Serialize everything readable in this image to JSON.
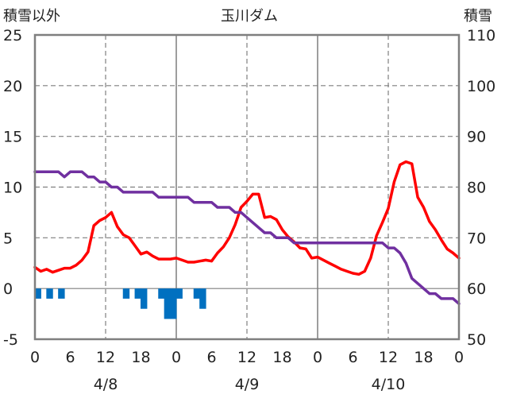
{
  "chart_data": {
    "type": "line",
    "title": "玉川ダム",
    "y_left_label": "積雪以外",
    "y_right_label": "積雪",
    "y_left_ticks": [
      "25",
      "20",
      "15",
      "10",
      "5",
      "0",
      "-5"
    ],
    "y_right_ticks": [
      "110",
      "100",
      "90",
      "80",
      "70",
      "60",
      "50"
    ],
    "y_left_range": [
      -5,
      25
    ],
    "y_right_range": [
      50,
      110
    ],
    "x_range_hours": [
      0,
      72
    ],
    "x_tick_hours": [
      0,
      6,
      12,
      18,
      24,
      30,
      36,
      42,
      48,
      54,
      60,
      66,
      72
    ],
    "x_tick_labels": [
      "0",
      "6",
      "12",
      "18",
      "0",
      "6",
      "12",
      "18",
      "0",
      "6",
      "12",
      "18",
      "0"
    ],
    "date_labels": [
      {
        "text": "4/8",
        "hour": 12
      },
      {
        "text": "4/9",
        "hour": 36
      },
      {
        "text": "4/10",
        "hour": 60
      }
    ],
    "colors": {
      "temperature": "#ff0000",
      "snow": "#7030a0",
      "precip": "#0070c0",
      "axis": "#7f7f7f",
      "grid": "#7f7f7f"
    },
    "series": [
      {
        "axis": "left",
        "color": "#ff0000",
        "x": [
          0,
          1,
          2,
          3,
          4,
          5,
          6,
          7,
          8,
          9,
          10,
          11,
          12,
          13,
          14,
          15,
          16,
          17,
          18,
          19,
          20,
          21,
          22,
          23,
          24,
          25,
          26,
          27,
          28,
          29,
          30,
          31,
          32,
          33,
          34,
          35,
          36,
          37,
          38,
          39,
          40,
          41,
          42,
          43,
          44,
          45,
          46,
          47,
          48,
          49,
          50,
          51,
          52,
          53,
          54,
          55,
          56,
          57,
          58,
          59,
          60,
          61,
          62,
          63,
          64,
          65,
          66,
          67,
          68,
          69,
          70,
          71,
          72
        ],
        "values": [
          2.1,
          1.7,
          1.9,
          1.6,
          1.8,
          2.0,
          2.0,
          2.3,
          2.8,
          3.6,
          6.2,
          6.7,
          7.0,
          7.5,
          6.1,
          5.3,
          5.0,
          4.2,
          3.4,
          3.6,
          3.2,
          2.9,
          2.9,
          2.9,
          3.0,
          2.8,
          2.6,
          2.6,
          2.7,
          2.8,
          2.7,
          3.5,
          4.1,
          5.0,
          6.3,
          8.0,
          8.6,
          9.3,
          9.3,
          7.0,
          7.1,
          6.8,
          5.8,
          5.1,
          4.6,
          4.0,
          3.9,
          3.0,
          3.1,
          2.8,
          2.5,
          2.2,
          1.9,
          1.7,
          1.5,
          1.4,
          1.7,
          3.0,
          5.2,
          6.5,
          7.9,
          10.5,
          12.2,
          12.5,
          12.3,
          9.0,
          8.0,
          6.6,
          5.8,
          4.8,
          3.9,
          3.5,
          3.0
        ]
      },
      {
        "axis": "right",
        "color": "#7030a0",
        "x": [
          0,
          1,
          2,
          3,
          4,
          5,
          6,
          7,
          8,
          9,
          10,
          11,
          12,
          13,
          14,
          15,
          16,
          17,
          18,
          19,
          20,
          21,
          22,
          23,
          24,
          25,
          26,
          27,
          28,
          29,
          30,
          31,
          32,
          33,
          34,
          35,
          36,
          37,
          38,
          39,
          40,
          41,
          42,
          43,
          44,
          45,
          46,
          47,
          48,
          49,
          50,
          51,
          52,
          53,
          54,
          55,
          56,
          57,
          58,
          59,
          60,
          61,
          62,
          63,
          64,
          65,
          66,
          67,
          68,
          69,
          70,
          71,
          72
        ],
        "values": [
          83,
          83,
          83,
          83,
          83,
          82,
          83,
          83,
          83,
          82,
          82,
          81,
          81,
          80,
          80,
          79,
          79,
          79,
          79,
          79,
          79,
          78,
          78,
          78,
          78,
          78,
          78,
          77,
          77,
          77,
          77,
          76,
          76,
          76,
          75,
          75,
          74,
          73,
          72,
          71,
          71,
          70,
          70,
          70,
          69,
          69,
          69,
          69,
          69,
          69,
          69,
          69,
          69,
          69,
          69,
          69,
          69,
          69,
          69,
          69,
          68,
          68,
          67,
          65,
          62,
          61,
          60,
          59,
          59,
          58,
          58,
          58,
          57
        ]
      },
      {
        "axis": "left",
        "type": "bar",
        "color": "#0070c0",
        "x": [
          0,
          2,
          4,
          15,
          17,
          18,
          21,
          22,
          23,
          24,
          27,
          28
        ],
        "values": [
          -1,
          -1,
          -1,
          -1,
          -1,
          -2,
          -1,
          -3,
          -3,
          -1,
          -1,
          -2
        ]
      }
    ],
    "grid": true
  }
}
